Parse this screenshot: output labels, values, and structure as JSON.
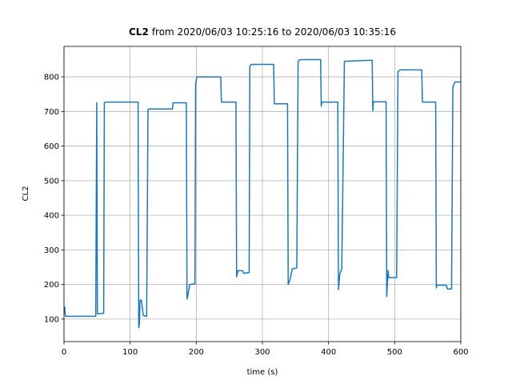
{
  "chart_data": {
    "type": "line",
    "title": [
      "CL2",
      "from 2020/06/03 10:25:16 to 2020/06/03 10:35:16"
    ],
    "x_label": "time (s)",
    "y_label": "CL2",
    "xlim": [
      0,
      600
    ],
    "ylim": [
      35,
      888
    ],
    "xticks": [
      0,
      100,
      200,
      300,
      400,
      500,
      600
    ],
    "yticks": [
      100,
      200,
      300,
      400,
      500,
      600,
      700,
      800
    ],
    "grid": true,
    "color": "#1f77b4",
    "x": [
      0,
      1,
      2,
      3,
      48,
      49.5,
      50.5,
      60,
      61,
      62,
      112,
      113,
      114,
      115,
      117,
      120,
      125,
      127,
      128,
      164,
      165,
      185,
      186,
      188,
      190,
      198,
      199,
      201,
      237,
      238,
      260,
      261,
      263,
      270,
      272,
      280,
      281,
      283,
      317,
      318,
      338,
      339,
      342,
      345,
      352,
      354,
      357,
      388,
      389,
      390,
      414,
      415,
      417,
      420,
      424,
      466,
      467,
      468,
      487,
      488,
      490,
      491,
      503,
      505,
      508,
      541,
      542,
      562,
      563,
      564,
      578,
      580,
      586,
      588,
      591,
      600
    ],
    "values": [
      130,
      135,
      110,
      108,
      108,
      725,
      115,
      117,
      725,
      727,
      727,
      75,
      85,
      155,
      155,
      110,
      108,
      705,
      707,
      707,
      725,
      725,
      158,
      175,
      200,
      202,
      780,
      800,
      800,
      727,
      727,
      222,
      240,
      240,
      232,
      235,
      830,
      836,
      836,
      722,
      722,
      200,
      215,
      245,
      248,
      845,
      850,
      850,
      715,
      727,
      727,
      185,
      230,
      245,
      845,
      848,
      702,
      728,
      728,
      165,
      240,
      220,
      220,
      815,
      820,
      820,
      727,
      727,
      190,
      198,
      198,
      187,
      187,
      770,
      785,
      785
    ]
  }
}
